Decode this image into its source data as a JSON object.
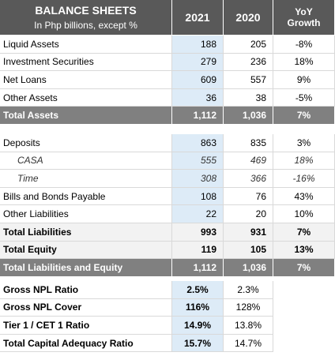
{
  "header": {
    "title": "BALANCE SHEETS",
    "subtitle": "In Php billions, except %",
    "columns": [
      "2021",
      "2020",
      "YoY Growth"
    ]
  },
  "sections": [
    {
      "rows": [
        {
          "label": "Liquid Assets",
          "values": [
            "188",
            "205",
            "-8%"
          ]
        },
        {
          "label": "Investment Securities",
          "values": [
            "279",
            "236",
            "18%"
          ]
        },
        {
          "label": "Net Loans",
          "values": [
            "609",
            "557",
            "9%"
          ]
        },
        {
          "label": "Other Assets",
          "values": [
            "36",
            "38",
            "-5%"
          ]
        },
        {
          "label": "Total Assets",
          "values": [
            "1,112",
            "1,036",
            "7%"
          ],
          "style": "total"
        }
      ]
    },
    {
      "rows": [
        {
          "label": "Deposits",
          "values": [
            "863",
            "835",
            "3%"
          ]
        },
        {
          "label": "CASA",
          "values": [
            "555",
            "469",
            "18%"
          ],
          "style": "italic"
        },
        {
          "label": "Time",
          "values": [
            "308",
            "366",
            "-16%"
          ],
          "style": "italic"
        },
        {
          "label": "Bills and Bonds Payable",
          "values": [
            "108",
            "76",
            "43%"
          ]
        },
        {
          "label": "Other Liabilities",
          "values": [
            "22",
            "20",
            "10%"
          ]
        },
        {
          "label": "Total Liabilities",
          "values": [
            "993",
            "931",
            "7%"
          ],
          "style": "subtotal"
        },
        {
          "label": "Total Equity",
          "values": [
            "119",
            "105",
            "13%"
          ],
          "style": "subtotal"
        },
        {
          "label": "Total Liabilities and Equity",
          "values": [
            "1,112",
            "1,036",
            "7%"
          ],
          "style": "total"
        }
      ]
    },
    {
      "rows": [
        {
          "label": "Gross NPL Ratio",
          "values": [
            "2.5%",
            "2.3%"
          ],
          "style": "ratio"
        },
        {
          "label": "Gross NPL Cover",
          "values": [
            "116%",
            "128%"
          ],
          "style": "ratio"
        },
        {
          "label": "Tier 1 / CET 1 Ratio",
          "values": [
            "14.9%",
            "13.8%"
          ],
          "style": "ratio"
        },
        {
          "label": "Total Capital Adequacy Ratio",
          "values": [
            "15.7%",
            "14.7%"
          ],
          "style": "ratio"
        }
      ]
    }
  ]
}
